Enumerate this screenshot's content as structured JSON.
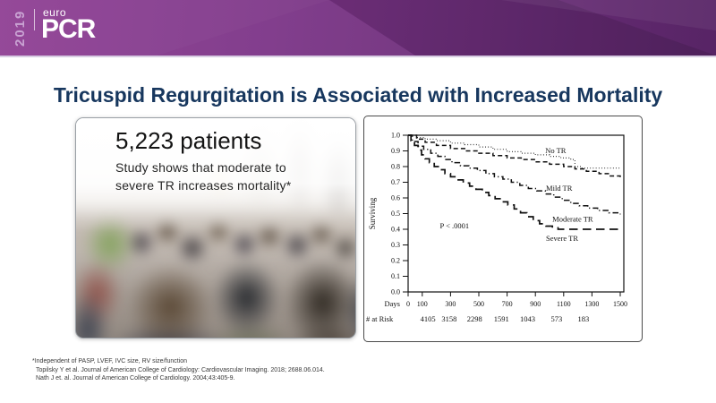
{
  "banner": {
    "year": "2019",
    "logo_sup": "euro",
    "logo_main": "PCR"
  },
  "colors": {
    "banner_base": "#7c3487",
    "banner_dark": "#572465",
    "banner_bright": "#8d3c92",
    "banner_underline": "#d7cce2",
    "title_text": "#17375e",
    "chart_ink": "#111111"
  },
  "title": "Tricuspid Regurgitation is Associated with Increased Mortality",
  "stat_panel": {
    "headline": "5,223 patients",
    "subline1": "Study shows that moderate to",
    "subline2": "severe TR increases mortality*"
  },
  "chart_data": {
    "type": "line",
    "xlabel": "Days",
    "ylabel": "Surviving",
    "xlim": [
      0,
      1500
    ],
    "ylim": [
      0.0,
      1.0
    ],
    "grid": false,
    "xticks": [
      "0",
      "100",
      "300",
      "500",
      "700",
      "900",
      "1100",
      "1300",
      "1500"
    ],
    "yticks": [
      "0.0",
      "0.1",
      "0.2",
      "0.3",
      "0.4",
      "0.5",
      "0.6",
      "0.7",
      "0.8",
      "0.9",
      "1.0"
    ],
    "annotation": {
      "text": "P < .0001",
      "x": 225,
      "y": 0.405
    },
    "risk": {
      "label": "# at Risk",
      "counts": [
        {
          "x": 140,
          "n": "4105"
        },
        {
          "x": 290,
          "n": "3158"
        },
        {
          "x": 470,
          "n": "2298"
        },
        {
          "x": 660,
          "n": "1591"
        },
        {
          "x": 845,
          "n": "1043"
        },
        {
          "x": 1050,
          "n": "573"
        },
        {
          "x": 1240,
          "n": "183"
        }
      ]
    },
    "series": [
      {
        "name": "No TR",
        "dash": "0.8 2.4",
        "width": 1.2,
        "label": {
          "x": 970,
          "y": 0.885
        },
        "points": [
          [
            0,
            1.0
          ],
          [
            60,
            0.985
          ],
          [
            120,
            0.975
          ],
          [
            200,
            0.965
          ],
          [
            300,
            0.95
          ],
          [
            400,
            0.94
          ],
          [
            500,
            0.925
          ],
          [
            600,
            0.91
          ],
          [
            700,
            0.895
          ],
          [
            800,
            0.885
          ],
          [
            900,
            0.875
          ],
          [
            1000,
            0.865
          ],
          [
            1080,
            0.855
          ],
          [
            1150,
            0.845
          ],
          [
            1180,
            0.8
          ],
          [
            1230,
            0.79
          ],
          [
            1500,
            0.785
          ]
        ]
      },
      {
        "name": "Mild TR",
        "dash": "5 3.2",
        "width": 1.5,
        "label": {
          "x": 975,
          "y": 0.645
        },
        "points": [
          [
            0,
            1.0
          ],
          [
            60,
            0.975
          ],
          [
            120,
            0.955
          ],
          [
            200,
            0.935
          ],
          [
            300,
            0.915
          ],
          [
            400,
            0.9
          ],
          [
            500,
            0.885
          ],
          [
            600,
            0.87
          ],
          [
            700,
            0.855
          ],
          [
            800,
            0.845
          ],
          [
            900,
            0.83
          ],
          [
            1000,
            0.815
          ],
          [
            1100,
            0.8
          ],
          [
            1180,
            0.785
          ],
          [
            1260,
            0.77
          ],
          [
            1350,
            0.755
          ],
          [
            1430,
            0.74
          ],
          [
            1500,
            0.73
          ]
        ]
      },
      {
        "name": "Moderate TR",
        "dash": "6.5 3 1.2 3",
        "width": 1.5,
        "label": {
          "x": 1020,
          "y": 0.45
        },
        "points": [
          [
            0,
            1.0
          ],
          [
            30,
            0.96
          ],
          [
            70,
            0.93
          ],
          [
            110,
            0.91
          ],
          [
            160,
            0.885
          ],
          [
            210,
            0.865
          ],
          [
            260,
            0.845
          ],
          [
            310,
            0.825
          ],
          [
            370,
            0.805
          ],
          [
            430,
            0.79
          ],
          [
            490,
            0.775
          ],
          [
            550,
            0.755
          ],
          [
            610,
            0.735
          ],
          [
            670,
            0.72
          ],
          [
            730,
            0.7
          ],
          [
            790,
            0.68
          ],
          [
            850,
            0.66
          ],
          [
            910,
            0.645
          ],
          [
            970,
            0.625
          ],
          [
            1030,
            0.605
          ],
          [
            1090,
            0.585
          ],
          [
            1150,
            0.565
          ],
          [
            1210,
            0.55
          ],
          [
            1270,
            0.535
          ],
          [
            1340,
            0.52
          ],
          [
            1420,
            0.505
          ],
          [
            1500,
            0.495
          ]
        ]
      },
      {
        "name": "Severe TR",
        "dash": "9.5 5.5",
        "width": 1.7,
        "label": {
          "x": 975,
          "y": 0.325
        },
        "points": [
          [
            0,
            1.0
          ],
          [
            20,
            0.965
          ],
          [
            45,
            0.935
          ],
          [
            70,
            0.905
          ],
          [
            95,
            0.875
          ],
          [
            120,
            0.85
          ],
          [
            150,
            0.825
          ],
          [
            185,
            0.8
          ],
          [
            220,
            0.78
          ],
          [
            260,
            0.755
          ],
          [
            300,
            0.735
          ],
          [
            345,
            0.715
          ],
          [
            390,
            0.695
          ],
          [
            435,
            0.675
          ],
          [
            480,
            0.655
          ],
          [
            525,
            0.635
          ],
          [
            570,
            0.615
          ],
          [
            615,
            0.595
          ],
          [
            660,
            0.575
          ],
          [
            705,
            0.555
          ],
          [
            750,
            0.53
          ],
          [
            795,
            0.505
          ],
          [
            840,
            0.48
          ],
          [
            885,
            0.455
          ],
          [
            930,
            0.435
          ],
          [
            975,
            0.42
          ],
          [
            1020,
            0.41
          ],
          [
            1060,
            0.4
          ],
          [
            1500,
            0.4
          ]
        ]
      }
    ]
  },
  "footnotes": [
    "*Independent of PASP, LVEF, IVC size, RV size/function",
    "Topilsky Y et al. Journal of American College of Cardiology: Cardiovascular Imaging. 2018; 2688.06.014.",
    "Nath J et. al. Journal of American College of Cardiology. 2004;43:405-9."
  ]
}
